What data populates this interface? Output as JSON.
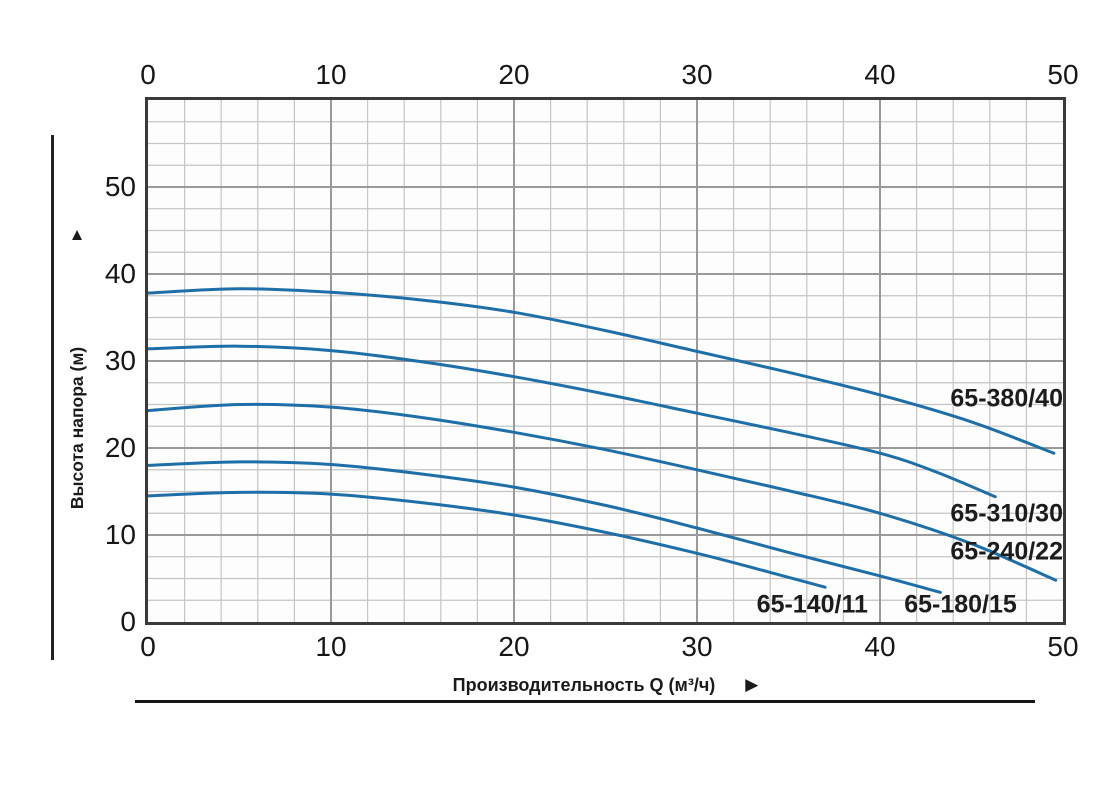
{
  "chart_data": {
    "type": "line",
    "title": "",
    "xlabel": "Производительность Q (м³/ч)",
    "ylabel": "Высота напора (м)",
    "x_axis": {
      "min": 0,
      "max": 50,
      "ticks": [
        0,
        10,
        20,
        30,
        40,
        50
      ],
      "minor_step": 2,
      "tick_sides": [
        "top",
        "bottom"
      ]
    },
    "y_axis": {
      "min": 0,
      "max": 60,
      "ticks": [
        0,
        10,
        20,
        30,
        40,
        50
      ],
      "minor_step": 2.5,
      "tick_side": "left"
    },
    "grid": true,
    "legend_position": "inline-labels",
    "series": [
      {
        "name": "65-380/40",
        "points": [
          [
            0,
            37.8
          ],
          [
            5,
            38.3
          ],
          [
            10,
            37.9
          ],
          [
            15,
            37.0
          ],
          [
            20,
            35.6
          ],
          [
            25,
            33.5
          ],
          [
            30,
            31.1
          ],
          [
            35,
            28.7
          ],
          [
            40,
            26.1
          ],
          [
            45,
            23.0
          ],
          [
            49.5,
            19.4
          ]
        ]
      },
      {
        "name": "65-310/30",
        "points": [
          [
            0,
            31.4
          ],
          [
            5,
            31.7
          ],
          [
            10,
            31.2
          ],
          [
            15,
            29.9
          ],
          [
            20,
            28.2
          ],
          [
            25,
            26.2
          ],
          [
            30,
            24.0
          ],
          [
            35,
            21.8
          ],
          [
            40,
            19.4
          ],
          [
            43,
            17.3
          ],
          [
            46.3,
            14.4
          ]
        ]
      },
      {
        "name": "65-240/22",
        "points": [
          [
            0,
            24.3
          ],
          [
            5,
            25.0
          ],
          [
            10,
            24.7
          ],
          [
            15,
            23.5
          ],
          [
            20,
            21.8
          ],
          [
            25,
            19.8
          ],
          [
            30,
            17.5
          ],
          [
            35,
            15.1
          ],
          [
            40,
            12.5
          ],
          [
            45,
            9.0
          ],
          [
            49.6,
            4.8
          ]
        ]
      },
      {
        "name": "65-180/15",
        "points": [
          [
            0,
            18.0
          ],
          [
            5,
            18.4
          ],
          [
            10,
            18.1
          ],
          [
            15,
            17.0
          ],
          [
            20,
            15.5
          ],
          [
            25,
            13.4
          ],
          [
            30,
            10.8
          ],
          [
            35,
            8.0
          ],
          [
            40,
            5.3
          ],
          [
            43.3,
            3.4
          ]
        ]
      },
      {
        "name": "65-140/11",
        "points": [
          [
            0,
            14.5
          ],
          [
            5,
            14.9
          ],
          [
            10,
            14.7
          ],
          [
            15,
            13.7
          ],
          [
            20,
            12.3
          ],
          [
            25,
            10.3
          ],
          [
            30,
            7.9
          ],
          [
            34,
            5.7
          ],
          [
            37,
            4.0
          ]
        ]
      }
    ],
    "annotations": [
      {
        "text": "65-380/40",
        "x": 50,
        "y": 25.6,
        "align": "right"
      },
      {
        "text": "65-310/30",
        "x": 50,
        "y": 12.4,
        "align": "right"
      },
      {
        "text": "65-240/22",
        "x": 50,
        "y": 8.0,
        "align": "right"
      },
      {
        "text": "65-180/15",
        "x": 44.4,
        "y": 2.0,
        "align": "center"
      },
      {
        "text": "65-140/11",
        "x": 36.3,
        "y": 2.0,
        "align": "center"
      }
    ],
    "colors": {
      "curve": "#1e6fa8",
      "grid_minor": "#c5c5c5",
      "grid_major": "#9a9a9a",
      "plot_border": "#3a3a3a",
      "text": "#1a1a1a"
    }
  },
  "icons": {
    "y_axis_arrow": "▲",
    "x_axis_arrow": "▶"
  }
}
